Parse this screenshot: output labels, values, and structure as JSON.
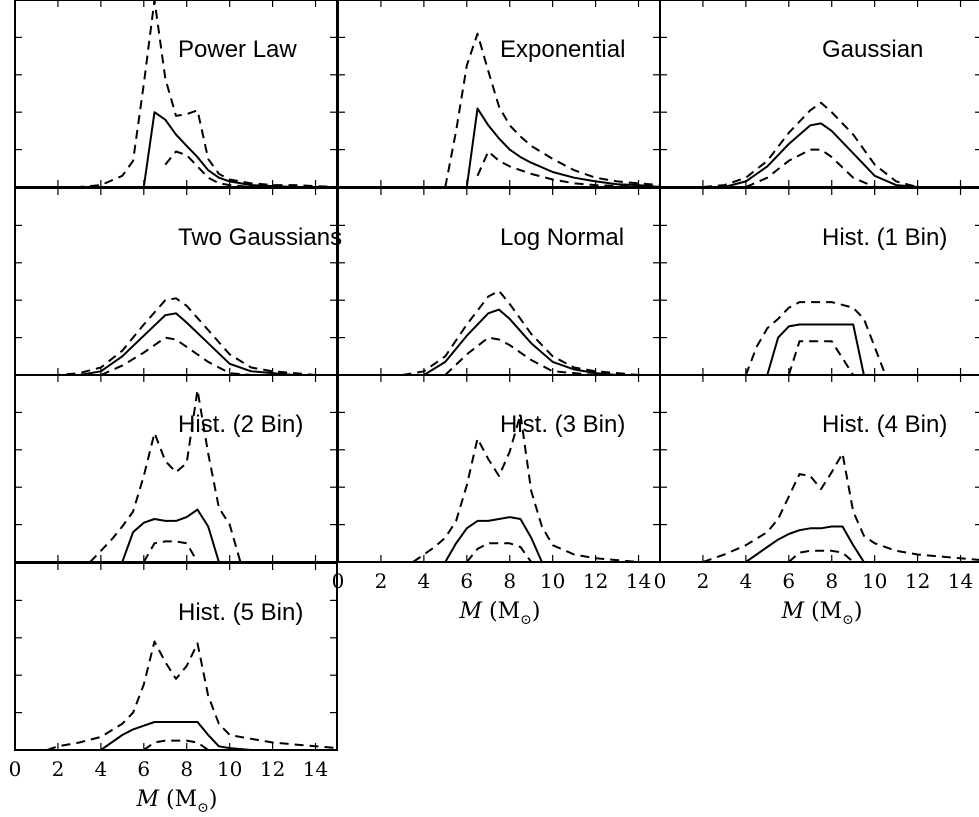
{
  "chart_data": {
    "type": "line",
    "layout": "grid 4 rows x 3 columns, 10 panels, shared x axis",
    "xlim": [
      0,
      15
    ],
    "ylim": [
      0,
      1
    ],
    "x_ticks": [
      0,
      2,
      4,
      6,
      8,
      10,
      12,
      14
    ],
    "x_tick_labels": [
      "0",
      "2",
      "4",
      "6",
      "8",
      "10",
      "12",
      "14"
    ],
    "xlabel_symbol": "M",
    "xlabel_unit": "(M",
    "xlabel_unit_sub": "⊙",
    "xlabel_close": ")",
    "y_tick_labels_shown": false,
    "line_styles": {
      "median": "solid",
      "lower": "dashed",
      "upper": "dashed"
    },
    "panels": [
      {
        "title": "Power Law",
        "x": [
          0,
          1,
          2,
          3,
          4,
          5,
          5.5,
          6,
          6.5,
          7,
          7.5,
          8,
          8.5,
          9,
          9.5,
          10,
          11,
          12,
          13,
          14,
          15
        ],
        "upper": [
          0,
          0,
          0,
          0,
          0.01,
          0.06,
          0.14,
          0.55,
          1.0,
          0.58,
          0.38,
          0.39,
          0.41,
          0.15,
          0.07,
          0.04,
          0.02,
          0.01,
          0.01,
          0.005,
          0
        ],
        "median": [
          null,
          null,
          null,
          null,
          null,
          null,
          0,
          0,
          0.4,
          0.36,
          0.28,
          0.22,
          0.16,
          0.09,
          0.05,
          0.03,
          0.01,
          0.005,
          0,
          0,
          0
        ],
        "lower": [
          null,
          null,
          null,
          null,
          null,
          null,
          null,
          null,
          null,
          0.12,
          0.19,
          0.17,
          0.11,
          0.05,
          0.02,
          0.01,
          0,
          0,
          0,
          0,
          0
        ]
      },
      {
        "title": "Exponential",
        "x": [
          0,
          4,
          5,
          5.5,
          6,
          6.5,
          7,
          7.5,
          8,
          8.5,
          9,
          10,
          11,
          12,
          13,
          14,
          15
        ],
        "upper": [
          null,
          null,
          0,
          0.3,
          0.65,
          0.82,
          0.62,
          0.43,
          0.33,
          0.27,
          0.22,
          0.15,
          0.09,
          0.05,
          0.03,
          0.02,
          0.01
        ],
        "median": [
          null,
          null,
          null,
          null,
          0,
          0.42,
          0.33,
          0.26,
          0.2,
          0.16,
          0.13,
          0.08,
          0.05,
          0.03,
          0.015,
          0.01,
          0
        ],
        "lower": [
          null,
          null,
          null,
          null,
          null,
          0.06,
          0.19,
          0.14,
          0.11,
          0.09,
          0.07,
          0.04,
          0.02,
          0.01,
          0.005,
          0,
          0
        ]
      },
      {
        "title": "Gaussian",
        "x": [
          2,
          3,
          4,
          5,
          6,
          7,
          7.5,
          8,
          9,
          10,
          11,
          12
        ],
        "upper": [
          0,
          0.01,
          0.05,
          0.14,
          0.29,
          0.41,
          0.45,
          0.4,
          0.28,
          0.12,
          0.03,
          0
        ],
        "median": [
          null,
          0,
          0.03,
          0.11,
          0.23,
          0.33,
          0.34,
          0.3,
          0.18,
          0.06,
          0.01,
          0
        ],
        "lower": [
          null,
          null,
          0,
          0.05,
          0.14,
          0.2,
          0.2,
          0.16,
          0.05,
          0,
          null,
          null
        ]
      },
      {
        "title": "Two Gaussians",
        "x": [
          1,
          2,
          3,
          4,
          5,
          6,
          7,
          7.5,
          8,
          9,
          10,
          11,
          12,
          13,
          14
        ],
        "upper": [
          0,
          0,
          0.01,
          0.04,
          0.13,
          0.27,
          0.4,
          0.41,
          0.37,
          0.24,
          0.11,
          0.04,
          0.02,
          0.01,
          0
        ],
        "median": [
          null,
          null,
          0,
          0.02,
          0.1,
          0.21,
          0.32,
          0.33,
          0.28,
          0.17,
          0.06,
          0.02,
          0.01,
          0,
          0
        ],
        "lower": [
          null,
          null,
          null,
          0,
          0.05,
          0.12,
          0.2,
          0.19,
          0.15,
          0.07,
          0.01,
          0,
          null,
          null,
          null
        ]
      },
      {
        "title": "Log Normal",
        "x": [
          3,
          4,
          5,
          6,
          7,
          7.5,
          8,
          9,
          10,
          11,
          12,
          13,
          14,
          15
        ],
        "upper": [
          0,
          0.02,
          0.1,
          0.27,
          0.42,
          0.45,
          0.38,
          0.22,
          0.1,
          0.04,
          0.02,
          0.01,
          0,
          0
        ],
        "median": [
          null,
          0,
          0.07,
          0.21,
          0.33,
          0.35,
          0.3,
          0.17,
          0.07,
          0.03,
          0.01,
          0,
          0,
          0
        ],
        "lower": [
          null,
          null,
          0,
          0.11,
          0.2,
          0.19,
          0.16,
          0.08,
          0.02,
          0.01,
          0,
          null,
          null,
          null
        ]
      },
      {
        "title": "Hist. (1 Bin)",
        "x": [
          4,
          4.5,
          5,
          5.5,
          6,
          6.5,
          7,
          8,
          9,
          9.5,
          10,
          10.5
        ],
        "upper": [
          0,
          0.15,
          0.25,
          0.3,
          0.36,
          0.39,
          0.39,
          0.39,
          0.36,
          0.3,
          0.15,
          0
        ],
        "median": [
          null,
          null,
          0,
          0.2,
          0.26,
          0.27,
          0.27,
          0.27,
          0.27,
          0,
          null,
          null
        ],
        "lower": [
          null,
          null,
          null,
          null,
          0,
          0.18,
          0.18,
          0.18,
          0,
          null,
          null,
          null
        ]
      },
      {
        "title": "Hist. (2 Bin)",
        "x": [
          3.5,
          4,
          4.5,
          5,
          5.5,
          6,
          6.5,
          7,
          7.5,
          8,
          8.5,
          9,
          9.5,
          10,
          10.5
        ],
        "upper": [
          0,
          0.06,
          0.12,
          0.19,
          0.27,
          0.46,
          0.69,
          0.54,
          0.48,
          0.53,
          0.92,
          0.58,
          0.29,
          0.2,
          0
        ],
        "median": [
          null,
          null,
          null,
          0,
          0.16,
          0.21,
          0.23,
          0.22,
          0.22,
          0.24,
          0.28,
          0.19,
          0,
          null,
          null
        ],
        "lower": [
          null,
          null,
          null,
          null,
          null,
          0,
          0.1,
          0.11,
          0.11,
          0.1,
          0,
          null,
          null,
          null,
          null
        ]
      },
      {
        "title": "Hist. (3 Bin)",
        "x": [
          3.5,
          4,
          4.5,
          5,
          5.5,
          6,
          6.5,
          7,
          7.5,
          8,
          8.5,
          9,
          9.5,
          10,
          11,
          12,
          13,
          14
        ],
        "upper": [
          0,
          0.04,
          0.08,
          0.13,
          0.22,
          0.41,
          0.66,
          0.55,
          0.46,
          0.59,
          0.79,
          0.38,
          0.19,
          0.09,
          0.04,
          0.02,
          0.01,
          0
        ],
        "median": [
          null,
          null,
          null,
          0,
          0.1,
          0.18,
          0.22,
          0.22,
          0.23,
          0.24,
          0.23,
          0.13,
          0,
          null,
          null,
          null,
          null,
          null
        ],
        "lower": [
          null,
          null,
          null,
          null,
          null,
          0,
          0.07,
          0.1,
          0.1,
          0.1,
          0.08,
          0,
          null,
          null,
          null,
          null,
          null,
          null
        ]
      },
      {
        "title": "Hist. (4 Bin)",
        "x": [
          2,
          3,
          4,
          5,
          5.5,
          6,
          6.5,
          7,
          7.5,
          8,
          8.5,
          9,
          9.5,
          10,
          11,
          12,
          13,
          14,
          15
        ],
        "upper": [
          0,
          0.04,
          0.09,
          0.16,
          0.23,
          0.35,
          0.47,
          0.46,
          0.39,
          0.48,
          0.58,
          0.27,
          0.14,
          0.1,
          0.06,
          0.04,
          0.03,
          0.02,
          0.01
        ],
        "median": [
          null,
          null,
          0,
          0.08,
          0.12,
          0.15,
          0.17,
          0.18,
          0.18,
          0.19,
          0.19,
          0.09,
          0,
          null,
          null,
          null,
          null,
          null,
          null
        ],
        "lower": [
          null,
          null,
          null,
          null,
          null,
          0,
          0.05,
          0.06,
          0.06,
          0.06,
          0.05,
          0,
          null,
          null,
          null,
          null,
          null,
          null,
          null
        ]
      },
      {
        "title": "Hist. (5 Bin)",
        "x": [
          1.5,
          2,
          3,
          4,
          5,
          5.5,
          6,
          6.5,
          7,
          7.5,
          8,
          8.5,
          9,
          9.5,
          10,
          11,
          12,
          13,
          14,
          15
        ],
        "upper": [
          0,
          0.02,
          0.04,
          0.07,
          0.14,
          0.2,
          0.35,
          0.58,
          0.47,
          0.38,
          0.45,
          0.57,
          0.29,
          0.14,
          0.08,
          0.06,
          0.04,
          0.03,
          0.02,
          0.01
        ],
        "median": [
          null,
          null,
          null,
          0,
          0.08,
          0.11,
          0.13,
          0.15,
          0.15,
          0.15,
          0.15,
          0.15,
          0.08,
          0.02,
          0.01,
          0,
          0,
          0,
          0,
          0
        ],
        "lower": [
          null,
          null,
          null,
          null,
          null,
          null,
          0,
          0.04,
          0.05,
          0.05,
          0.05,
          0.04,
          0,
          null,
          null,
          null,
          null,
          null,
          null,
          null
        ]
      }
    ]
  }
}
